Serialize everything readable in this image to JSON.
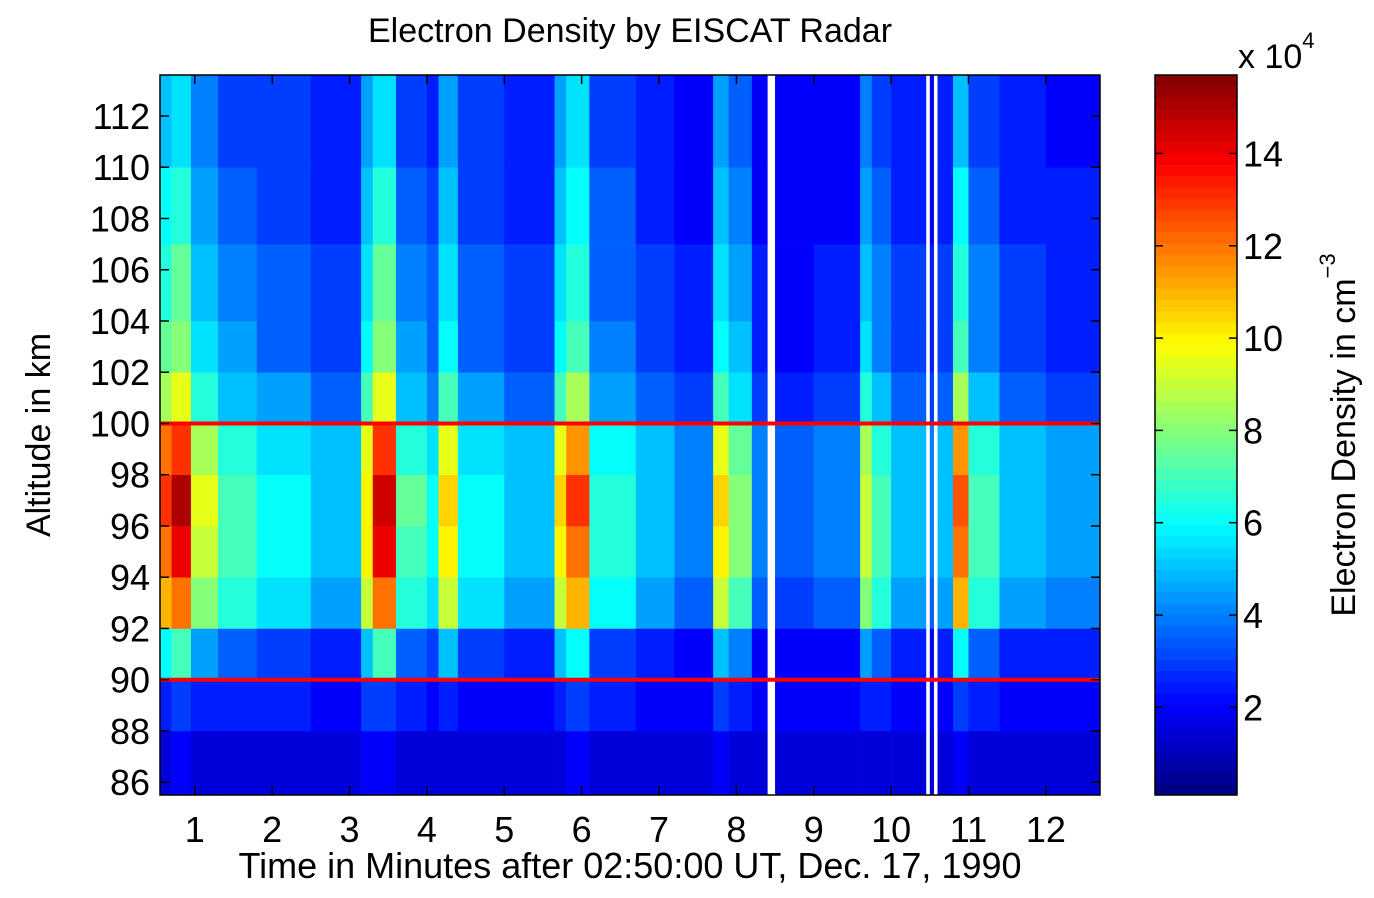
{
  "chart_data": {
    "type": "heatmap",
    "title": "Electron Density by EISCAT Radar",
    "xlabel": "Time in Minutes after 02:50:00 UT, Dec. 17, 1990",
    "ylabel": "Altitude in km",
    "colormap": "jet",
    "x_bins": [
      0.55,
      0.7,
      0.95,
      1.3,
      1.8,
      2.5,
      3.15,
      3.3,
      3.6,
      4.0,
      4.15,
      4.4,
      5.0,
      5.65,
      5.8,
      6.1,
      6.7,
      7.2,
      7.7,
      7.9,
      8.2,
      8.4,
      8.5,
      9.0,
      9.6,
      9.75,
      10.0,
      10.45,
      10.5,
      10.55,
      10.6,
      10.8,
      11.0,
      11.4,
      12.0,
      12.7
    ],
    "y_bins": [
      85.5,
      88,
      90,
      92,
      94,
      96,
      98,
      100,
      102,
      104,
      107,
      110,
      113.6
    ],
    "values": [
      [
        1.5,
        2,
        1.5,
        1.5,
        1.5,
        1.5,
        2,
        2,
        1.5,
        1.5,
        1.5,
        1.5,
        1.5,
        1.5,
        2,
        1.5,
        1.5,
        1.5,
        2,
        1.5,
        1.5,
        null,
        1.5,
        1.5,
        1.5,
        1.5,
        1.5,
        null,
        1.5,
        null,
        1.5,
        2,
        1.5,
        1.5,
        1.5
      ],
      [
        2.5,
        3,
        2.5,
        2.5,
        2.5,
        2,
        3,
        3,
        2.5,
        2,
        2.5,
        2,
        2,
        2.5,
        3,
        2.5,
        2,
        2,
        3,
        2.5,
        2,
        null,
        2,
        2,
        2.5,
        2.5,
        2,
        null,
        2,
        null,
        2,
        3,
        2.5,
        2,
        2
      ],
      [
        6,
        7,
        4.5,
        3.5,
        3,
        2.5,
        5,
        7,
        3.5,
        3,
        5,
        3,
        2.5,
        5,
        6,
        3,
        2.5,
        2,
        5,
        4,
        2,
        null,
        2,
        2,
        4.5,
        3.5,
        2.5,
        null,
        2,
        null,
        2.5,
        6,
        3.5,
        2.5,
        2.5
      ],
      [
        11,
        12,
        8,
        6.5,
        5.5,
        4.5,
        9,
        12,
        6.5,
        5.5,
        9,
        5.5,
        4.5,
        9,
        11,
        6,
        4.5,
        3.5,
        9,
        7,
        3.5,
        null,
        3,
        3.5,
        8,
        6.5,
        4.5,
        null,
        3.5,
        null,
        4.5,
        11,
        6.5,
        4.5,
        4
      ],
      [
        12,
        14,
        9,
        7,
        6,
        5,
        10,
        14,
        7,
        6,
        10,
        6,
        5,
        10,
        12,
        6.5,
        5,
        4,
        10,
        8,
        4,
        null,
        3.5,
        4,
        9,
        7,
        5,
        null,
        4,
        null,
        5,
        12,
        7,
        5,
        4.5
      ],
      [
        13,
        15,
        9.5,
        7,
        6,
        5,
        10,
        14.5,
        7.5,
        6,
        10.5,
        6,
        5,
        10.5,
        13,
        6.5,
        5,
        4,
        10.5,
        8,
        4,
        null,
        3.5,
        4,
        9,
        7,
        5,
        null,
        4,
        null,
        5,
        12.5,
        7,
        5,
        4.5
      ],
      [
        12,
        13,
        8.5,
        6.5,
        5.5,
        5,
        9.5,
        13,
        6.5,
        5.5,
        9.5,
        5.5,
        5,
        9.5,
        11.5,
        6,
        5,
        4,
        9.5,
        7.5,
        4,
        null,
        3.5,
        4,
        8.5,
        6.5,
        5,
        null,
        4,
        null,
        5,
        11.5,
        6.5,
        5,
        4.5
      ],
      [
        8.5,
        9.5,
        6.5,
        5,
        4.5,
        3.5,
        7,
        9.5,
        5,
        4,
        7,
        4.5,
        3.5,
        7,
        8.5,
        4.5,
        3.5,
        3,
        7,
        5.5,
        3,
        null,
        2.5,
        3,
        6.5,
        5,
        3.5,
        null,
        3,
        null,
        3.5,
        8.5,
        5,
        3.5,
        3
      ],
      [
        7.5,
        8,
        5.5,
        4.5,
        3.5,
        3,
        6,
        8,
        4.5,
        3.5,
        6,
        3.5,
        3,
        6,
        7,
        4,
        3,
        2.5,
        6,
        5,
        2.5,
        null,
        2,
        2.5,
        5.5,
        4,
        3,
        null,
        2.5,
        null,
        3,
        7,
        4,
        3,
        2.5
      ],
      [
        6.5,
        7.5,
        5,
        4,
        3.5,
        3,
        5.5,
        7.5,
        4,
        3.5,
        5.5,
        3.5,
        3,
        5.5,
        6.5,
        3.5,
        3,
        2.5,
        5.5,
        4.5,
        2.5,
        null,
        2,
        2.5,
        5,
        4,
        3,
        null,
        2.5,
        null,
        3,
        6.5,
        4,
        3,
        2.5
      ],
      [
        6,
        6.5,
        4.5,
        3.5,
        3,
        2.5,
        5,
        6.5,
        3.5,
        3,
        5,
        3,
        2.5,
        5,
        6,
        3.5,
        2.5,
        2,
        5,
        4,
        2,
        null,
        2,
        2,
        4.5,
        3.5,
        2.5,
        null,
        2,
        null,
        2.5,
        6,
        3.5,
        2.5,
        2.5
      ],
      [
        5,
        5.5,
        4,
        3,
        3,
        2.5,
        4.5,
        5.5,
        3,
        2.5,
        4.5,
        3,
        2.5,
        4.5,
        5.5,
        3,
        2.5,
        2,
        4.5,
        3.5,
        2,
        null,
        2,
        2,
        4,
        3,
        2.5,
        null,
        2,
        null,
        2.5,
        5,
        3,
        2.5,
        2
      ]
    ],
    "xlim": [
      0.55,
      12.7
    ],
    "ylim": [
      85.5,
      113.6
    ],
    "xticks": [
      1,
      2,
      3,
      4,
      5,
      6,
      7,
      8,
      9,
      10,
      11,
      12
    ],
    "yticks": [
      86,
      88,
      90,
      92,
      94,
      96,
      98,
      100,
      102,
      104,
      106,
      108,
      110,
      112
    ],
    "hlines": [
      90,
      100
    ],
    "hline_color": "#ff0000",
    "clim": [
      0.1,
      15.7
    ],
    "cticks": [
      2,
      4,
      6,
      8,
      10,
      12,
      14
    ],
    "colorbar_label": "Electron Density in cm",
    "colorbar_label_sup": "−3",
    "colorbar_multiplier": "x 10",
    "colorbar_exponent": "4"
  }
}
